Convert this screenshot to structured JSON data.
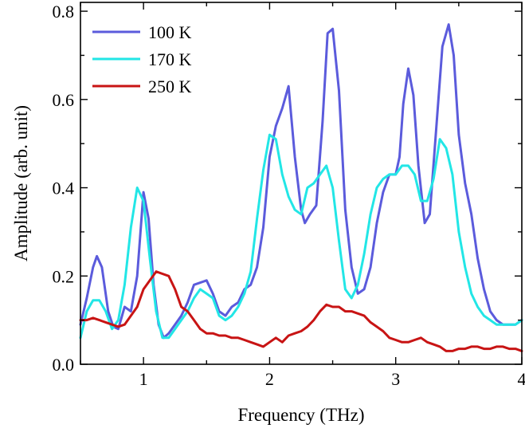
{
  "chart_data": {
    "type": "line",
    "title": "",
    "xlabel": "Frequency (THz)",
    "ylabel": "Amplitude (arb. unit)",
    "xlim": [
      0.5,
      4.0
    ],
    "ylim": [
      0.0,
      0.82
    ],
    "xticks": [
      1,
      2,
      3,
      4
    ],
    "yticks": [
      0.0,
      0.2,
      0.4,
      0.6,
      0.8
    ],
    "xtick_labels": [
      "1",
      "2",
      "3",
      "4"
    ],
    "ytick_labels": [
      "0.0",
      "0.2",
      "0.4",
      "0.6",
      "0.8"
    ],
    "grid": false,
    "legend_position": "top-left",
    "series": [
      {
        "name": "100 K",
        "color": "#5b5bdc",
        "points": [
          [
            0.5,
            0.09
          ],
          [
            0.55,
            0.15
          ],
          [
            0.6,
            0.22
          ],
          [
            0.63,
            0.245
          ],
          [
            0.67,
            0.22
          ],
          [
            0.72,
            0.12
          ],
          [
            0.76,
            0.085
          ],
          [
            0.8,
            0.08
          ],
          [
            0.85,
            0.13
          ],
          [
            0.9,
            0.12
          ],
          [
            0.95,
            0.2
          ],
          [
            1.0,
            0.39
          ],
          [
            1.04,
            0.33
          ],
          [
            1.08,
            0.18
          ],
          [
            1.12,
            0.09
          ],
          [
            1.16,
            0.06
          ],
          [
            1.2,
            0.07
          ],
          [
            1.25,
            0.09
          ],
          [
            1.3,
            0.11
          ],
          [
            1.35,
            0.14
          ],
          [
            1.4,
            0.18
          ],
          [
            1.45,
            0.185
          ],
          [
            1.5,
            0.19
          ],
          [
            1.55,
            0.16
          ],
          [
            1.6,
            0.12
          ],
          [
            1.65,
            0.11
          ],
          [
            1.7,
            0.13
          ],
          [
            1.75,
            0.14
          ],
          [
            1.8,
            0.17
          ],
          [
            1.85,
            0.18
          ],
          [
            1.9,
            0.22
          ],
          [
            1.95,
            0.31
          ],
          [
            2.0,
            0.47
          ],
          [
            2.05,
            0.54
          ],
          [
            2.1,
            0.58
          ],
          [
            2.15,
            0.63
          ],
          [
            2.2,
            0.47
          ],
          [
            2.25,
            0.35
          ],
          [
            2.28,
            0.32
          ],
          [
            2.32,
            0.34
          ],
          [
            2.37,
            0.36
          ],
          [
            2.42,
            0.55
          ],
          [
            2.46,
            0.75
          ],
          [
            2.5,
            0.76
          ],
          [
            2.55,
            0.62
          ],
          [
            2.6,
            0.35
          ],
          [
            2.65,
            0.22
          ],
          [
            2.7,
            0.16
          ],
          [
            2.75,
            0.17
          ],
          [
            2.8,
            0.22
          ],
          [
            2.85,
            0.32
          ],
          [
            2.9,
            0.39
          ],
          [
            2.95,
            0.43
          ],
          [
            3.0,
            0.43
          ],
          [
            3.03,
            0.47
          ],
          [
            3.06,
            0.59
          ],
          [
            3.1,
            0.67
          ],
          [
            3.14,
            0.61
          ],
          [
            3.18,
            0.45
          ],
          [
            3.23,
            0.32
          ],
          [
            3.27,
            0.34
          ],
          [
            3.32,
            0.53
          ],
          [
            3.37,
            0.72
          ],
          [
            3.42,
            0.77
          ],
          [
            3.46,
            0.7
          ],
          [
            3.5,
            0.52
          ],
          [
            3.55,
            0.41
          ],
          [
            3.6,
            0.34
          ],
          [
            3.65,
            0.24
          ],
          [
            3.7,
            0.17
          ],
          [
            3.75,
            0.12
          ],
          [
            3.8,
            0.1
          ],
          [
            3.85,
            0.09
          ],
          [
            3.9,
            0.09
          ],
          [
            3.95,
            0.09
          ],
          [
            4.0,
            0.1
          ]
        ]
      },
      {
        "name": "170 K",
        "color": "#22e6e6",
        "points": [
          [
            0.5,
            0.06
          ],
          [
            0.55,
            0.12
          ],
          [
            0.6,
            0.145
          ],
          [
            0.65,
            0.145
          ],
          [
            0.7,
            0.12
          ],
          [
            0.75,
            0.08
          ],
          [
            0.8,
            0.1
          ],
          [
            0.85,
            0.18
          ],
          [
            0.9,
            0.31
          ],
          [
            0.95,
            0.4
          ],
          [
            1.0,
            0.37
          ],
          [
            1.05,
            0.24
          ],
          [
            1.1,
            0.12
          ],
          [
            1.15,
            0.06
          ],
          [
            1.2,
            0.06
          ],
          [
            1.25,
            0.08
          ],
          [
            1.3,
            0.1
          ],
          [
            1.35,
            0.12
          ],
          [
            1.4,
            0.15
          ],
          [
            1.45,
            0.17
          ],
          [
            1.5,
            0.16
          ],
          [
            1.55,
            0.15
          ],
          [
            1.6,
            0.11
          ],
          [
            1.65,
            0.1
          ],
          [
            1.7,
            0.11
          ],
          [
            1.75,
            0.13
          ],
          [
            1.8,
            0.16
          ],
          [
            1.85,
            0.21
          ],
          [
            1.9,
            0.33
          ],
          [
            1.95,
            0.44
          ],
          [
            2.0,
            0.52
          ],
          [
            2.05,
            0.51
          ],
          [
            2.1,
            0.43
          ],
          [
            2.15,
            0.38
          ],
          [
            2.2,
            0.35
          ],
          [
            2.25,
            0.34
          ],
          [
            2.3,
            0.4
          ],
          [
            2.35,
            0.41
          ],
          [
            2.4,
            0.43
          ],
          [
            2.45,
            0.45
          ],
          [
            2.5,
            0.4
          ],
          [
            2.55,
            0.28
          ],
          [
            2.6,
            0.17
          ],
          [
            2.65,
            0.15
          ],
          [
            2.7,
            0.18
          ],
          [
            2.75,
            0.25
          ],
          [
            2.8,
            0.34
          ],
          [
            2.85,
            0.4
          ],
          [
            2.9,
            0.42
          ],
          [
            2.95,
            0.43
          ],
          [
            3.0,
            0.43
          ],
          [
            3.05,
            0.45
          ],
          [
            3.1,
            0.45
          ],
          [
            3.15,
            0.43
          ],
          [
            3.2,
            0.37
          ],
          [
            3.25,
            0.37
          ],
          [
            3.3,
            0.42
          ],
          [
            3.35,
            0.51
          ],
          [
            3.4,
            0.49
          ],
          [
            3.45,
            0.43
          ],
          [
            3.5,
            0.3
          ],
          [
            3.55,
            0.22
          ],
          [
            3.6,
            0.16
          ],
          [
            3.65,
            0.13
          ],
          [
            3.7,
            0.11
          ],
          [
            3.75,
            0.1
          ],
          [
            3.8,
            0.09
          ],
          [
            3.85,
            0.09
          ],
          [
            3.9,
            0.09
          ],
          [
            3.95,
            0.09
          ],
          [
            4.0,
            0.1
          ]
        ]
      },
      {
        "name": "250 K",
        "color": "#c81414",
        "points": [
          [
            0.5,
            0.1
          ],
          [
            0.55,
            0.1
          ],
          [
            0.6,
            0.105
          ],
          [
            0.65,
            0.1
          ],
          [
            0.7,
            0.095
          ],
          [
            0.75,
            0.09
          ],
          [
            0.8,
            0.085
          ],
          [
            0.85,
            0.09
          ],
          [
            0.9,
            0.11
          ],
          [
            0.95,
            0.13
          ],
          [
            1.0,
            0.17
          ],
          [
            1.05,
            0.19
          ],
          [
            1.1,
            0.21
          ],
          [
            1.15,
            0.205
          ],
          [
            1.2,
            0.2
          ],
          [
            1.25,
            0.17
          ],
          [
            1.3,
            0.13
          ],
          [
            1.35,
            0.12
          ],
          [
            1.4,
            0.1
          ],
          [
            1.45,
            0.08
          ],
          [
            1.5,
            0.07
          ],
          [
            1.55,
            0.07
          ],
          [
            1.6,
            0.065
          ],
          [
            1.65,
            0.065
          ],
          [
            1.7,
            0.06
          ],
          [
            1.75,
            0.06
          ],
          [
            1.8,
            0.055
          ],
          [
            1.85,
            0.05
          ],
          [
            1.9,
            0.045
          ],
          [
            1.95,
            0.04
          ],
          [
            2.0,
            0.05
          ],
          [
            2.05,
            0.06
          ],
          [
            2.1,
            0.05
          ],
          [
            2.15,
            0.065
          ],
          [
            2.2,
            0.07
          ],
          [
            2.25,
            0.075
          ],
          [
            2.3,
            0.085
          ],
          [
            2.35,
            0.1
          ],
          [
            2.4,
            0.12
          ],
          [
            2.45,
            0.135
          ],
          [
            2.5,
            0.13
          ],
          [
            2.55,
            0.13
          ],
          [
            2.6,
            0.12
          ],
          [
            2.65,
            0.12
          ],
          [
            2.7,
            0.115
          ],
          [
            2.75,
            0.11
          ],
          [
            2.8,
            0.095
          ],
          [
            2.85,
            0.085
          ],
          [
            2.9,
            0.075
          ],
          [
            2.95,
            0.06
          ],
          [
            3.0,
            0.055
          ],
          [
            3.05,
            0.05
          ],
          [
            3.1,
            0.05
          ],
          [
            3.15,
            0.055
          ],
          [
            3.2,
            0.06
          ],
          [
            3.25,
            0.05
          ],
          [
            3.3,
            0.045
          ],
          [
            3.35,
            0.04
          ],
          [
            3.4,
            0.03
          ],
          [
            3.45,
            0.03
          ],
          [
            3.5,
            0.035
          ],
          [
            3.55,
            0.035
          ],
          [
            3.6,
            0.04
          ],
          [
            3.65,
            0.04
          ],
          [
            3.7,
            0.035
          ],
          [
            3.75,
            0.035
          ],
          [
            3.8,
            0.04
          ],
          [
            3.85,
            0.04
          ],
          [
            3.9,
            0.035
          ],
          [
            3.95,
            0.035
          ],
          [
            4.0,
            0.03
          ]
        ]
      }
    ]
  }
}
